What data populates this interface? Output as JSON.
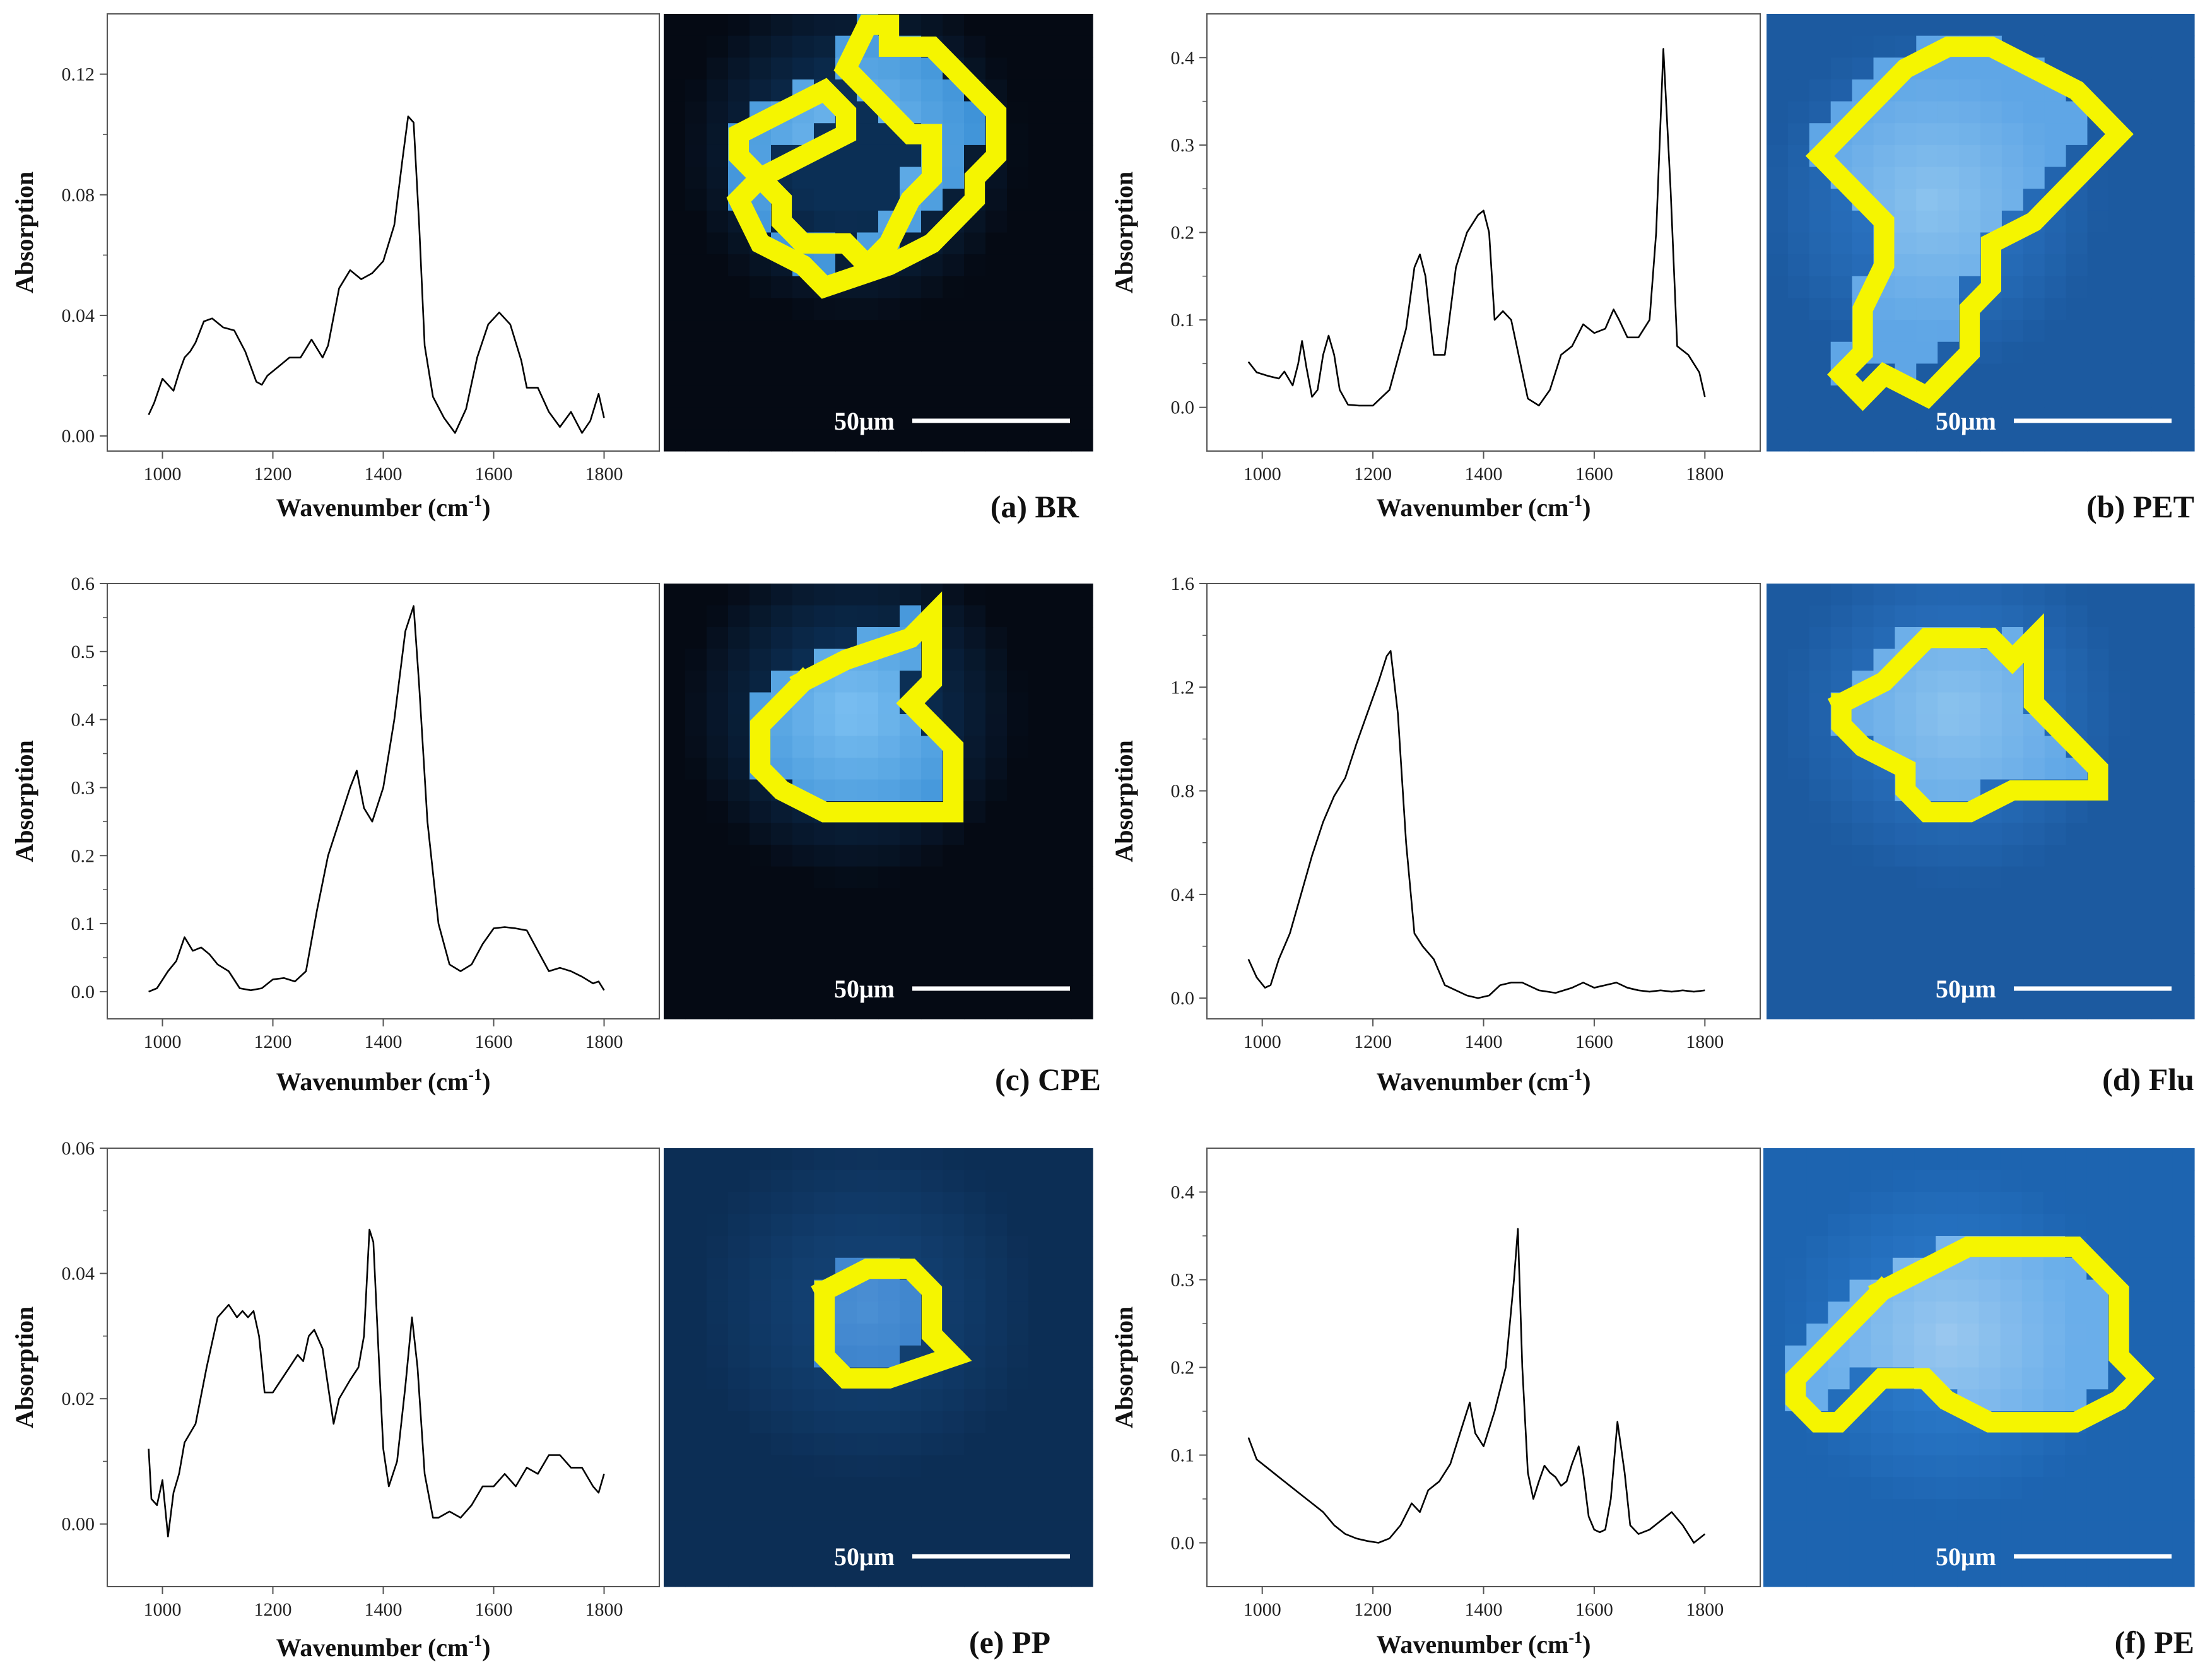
{
  "chart_data": [
    {
      "type": "line",
      "panel": "(a) BR",
      "xlabel": "Wavenumber (cm",
      "xlabel_sup": "-1",
      "xlabel_end": ")",
      "ylabel": "Absorption",
      "xlim": [
        900,
        1900
      ],
      "ylim": [
        -0.005,
        0.14
      ],
      "xticks": [
        1000,
        1200,
        1400,
        1600,
        1800
      ],
      "yticks": [
        0.0,
        0.04,
        0.08,
        0.12
      ],
      "ytick_labels": [
        "0.00",
        "0.04",
        "0.08",
        "0.12"
      ],
      "scale_bar": "50μm",
      "image_style": "dark",
      "series": [
        {
          "x": [
            975,
            985,
            1000,
            1010,
            1020,
            1030,
            1040,
            1050,
            1060,
            1075,
            1090,
            1110,
            1130,
            1150,
            1170,
            1180,
            1190,
            1210,
            1230,
            1250,
            1270,
            1290,
            1300,
            1320,
            1340,
            1360,
            1380,
            1400,
            1420,
            1435,
            1445,
            1455,
            1465,
            1475,
            1490,
            1510,
            1530,
            1550,
            1570,
            1590,
            1610,
            1630,
            1650,
            1660,
            1680,
            1700,
            1720,
            1740,
            1760,
            1775,
            1790,
            1800
          ],
          "y": [
            0.007,
            0.011,
            0.019,
            0.017,
            0.015,
            0.021,
            0.026,
            0.028,
            0.031,
            0.038,
            0.039,
            0.036,
            0.035,
            0.028,
            0.018,
            0.017,
            0.02,
            0.023,
            0.026,
            0.026,
            0.032,
            0.026,
            0.03,
            0.049,
            0.055,
            0.052,
            0.054,
            0.058,
            0.07,
            0.092,
            0.106,
            0.104,
            0.07,
            0.03,
            0.013,
            0.006,
            0.001,
            0.009,
            0.026,
            0.037,
            0.041,
            0.037,
            0.025,
            0.016,
            0.016,
            0.008,
            0.003,
            0.008,
            0.001,
            0.005,
            0.014,
            0.006
          ]
        }
      ]
    },
    {
      "type": "line",
      "panel": "(b) PET",
      "xlabel": "Wavenumber (cm",
      "xlabel_sup": "-1",
      "xlabel_end": ")",
      "ylabel": "Absorption",
      "xlim": [
        900,
        1900
      ],
      "ylim": [
        -0.05,
        0.45
      ],
      "xticks": [
        1000,
        1200,
        1400,
        1600,
        1800
      ],
      "yticks": [
        0.0,
        0.1,
        0.2,
        0.3,
        0.4
      ],
      "ytick_labels": [
        "0.0",
        "0.1",
        "0.2",
        "0.3",
        "0.4"
      ],
      "scale_bar": "50μm",
      "image_style": "blue",
      "series": [
        {
          "x": [
            975,
            990,
            1010,
            1030,
            1040,
            1055,
            1065,
            1072,
            1080,
            1090,
            1100,
            1110,
            1120,
            1130,
            1140,
            1155,
            1175,
            1200,
            1230,
            1260,
            1275,
            1285,
            1295,
            1310,
            1330,
            1350,
            1370,
            1390,
            1400,
            1410,
            1420,
            1435,
            1450,
            1460,
            1470,
            1480,
            1500,
            1520,
            1540,
            1560,
            1580,
            1600,
            1620,
            1635,
            1645,
            1660,
            1680,
            1700,
            1712,
            1725,
            1738,
            1750,
            1770,
            1790,
            1800
          ],
          "y": [
            0.052,
            0.04,
            0.036,
            0.033,
            0.041,
            0.025,
            0.05,
            0.076,
            0.045,
            0.012,
            0.02,
            0.06,
            0.082,
            0.06,
            0.02,
            0.003,
            0.002,
            0.002,
            0.02,
            0.09,
            0.16,
            0.175,
            0.15,
            0.06,
            0.06,
            0.16,
            0.2,
            0.22,
            0.225,
            0.2,
            0.1,
            0.11,
            0.1,
            0.07,
            0.04,
            0.01,
            0.002,
            0.02,
            0.06,
            0.07,
            0.095,
            0.085,
            0.09,
            0.112,
            0.1,
            0.08,
            0.08,
            0.1,
            0.2,
            0.41,
            0.25,
            0.07,
            0.06,
            0.04,
            0.012
          ]
        }
      ]
    },
    {
      "type": "line",
      "panel": "(c) CPE",
      "xlabel": "Wavenumber (cm",
      "xlabel_sup": "-1",
      "xlabel_end": ")",
      "ylabel": "Absorption",
      "xlim": [
        900,
        1900
      ],
      "ylim": [
        -0.04,
        0.6
      ],
      "xticks": [
        1000,
        1200,
        1400,
        1600,
        1800
      ],
      "yticks": [
        0.0,
        0.1,
        0.2,
        0.3,
        0.4,
        0.5,
        0.6
      ],
      "ytick_labels": [
        "0.0",
        "0.1",
        "0.2",
        "0.3",
        "0.4",
        "0.5",
        "0.6"
      ],
      "scale_bar": "50μm",
      "image_style": "dark",
      "series": [
        {
          "x": [
            975,
            990,
            1010,
            1025,
            1040,
            1055,
            1070,
            1085,
            1100,
            1120,
            1140,
            1160,
            1180,
            1200,
            1220,
            1240,
            1260,
            1280,
            1300,
            1320,
            1340,
            1352,
            1365,
            1380,
            1400,
            1420,
            1440,
            1455,
            1465,
            1480,
            1500,
            1520,
            1540,
            1560,
            1580,
            1600,
            1620,
            1640,
            1660,
            1680,
            1700,
            1720,
            1740,
            1760,
            1780,
            1790,
            1800
          ],
          "y": [
            0.0,
            0.005,
            0.03,
            0.045,
            0.08,
            0.06,
            0.065,
            0.055,
            0.04,
            0.03,
            0.005,
            0.002,
            0.005,
            0.018,
            0.02,
            0.015,
            0.03,
            0.12,
            0.2,
            0.25,
            0.3,
            0.325,
            0.27,
            0.25,
            0.3,
            0.4,
            0.53,
            0.567,
            0.45,
            0.25,
            0.1,
            0.04,
            0.03,
            0.04,
            0.07,
            0.093,
            0.095,
            0.093,
            0.09,
            0.06,
            0.03,
            0.035,
            0.03,
            0.022,
            0.012,
            0.015,
            0.002
          ]
        }
      ]
    },
    {
      "type": "line",
      "panel": "(d) Flu",
      "xlabel": "Wavenumber (cm",
      "xlabel_sup": "-1",
      "xlabel_end": ")",
      "ylabel": "Absorption",
      "xlim": [
        900,
        1900
      ],
      "ylim": [
        -0.08,
        1.6
      ],
      "xticks": [
        1000,
        1200,
        1400,
        1600,
        1800
      ],
      "yticks": [
        0.0,
        0.4,
        0.8,
        1.2,
        1.6
      ],
      "ytick_labels": [
        "0.0",
        "0.4",
        "0.8",
        "1.2",
        "1.6"
      ],
      "scale_bar": "50μm",
      "image_style": "blue",
      "series": [
        {
          "x": [
            975,
            990,
            1005,
            1015,
            1030,
            1050,
            1070,
            1090,
            1110,
            1130,
            1150,
            1170,
            1190,
            1210,
            1225,
            1232,
            1245,
            1260,
            1275,
            1290,
            1310,
            1330,
            1350,
            1370,
            1390,
            1410,
            1430,
            1450,
            1470,
            1500,
            1530,
            1560,
            1580,
            1600,
            1620,
            1640,
            1660,
            1680,
            1700,
            1720,
            1740,
            1760,
            1780,
            1800
          ],
          "y": [
            0.15,
            0.08,
            0.04,
            0.05,
            0.15,
            0.25,
            0.4,
            0.55,
            0.68,
            0.78,
            0.85,
            0.98,
            1.1,
            1.22,
            1.32,
            1.34,
            1.1,
            0.6,
            0.25,
            0.2,
            0.15,
            0.05,
            0.03,
            0.01,
            0.0,
            0.01,
            0.05,
            0.06,
            0.06,
            0.03,
            0.02,
            0.04,
            0.06,
            0.04,
            0.05,
            0.06,
            0.04,
            0.03,
            0.025,
            0.03,
            0.025,
            0.03,
            0.025,
            0.03
          ]
        }
      ]
    },
    {
      "type": "line",
      "panel": "(e) PP",
      "xlabel": "Wavenumber (cm",
      "xlabel_sup": "-1",
      "xlabel_end": ")",
      "ylabel": "Absorption",
      "xlim": [
        900,
        1900
      ],
      "ylim": [
        -0.01,
        0.06
      ],
      "xticks": [
        1000,
        1200,
        1400,
        1600,
        1800
      ],
      "yticks": [
        0.0,
        0.02,
        0.04,
        0.06
      ],
      "ytick_labels": [
        "0.00",
        "0.02",
        "0.04",
        "0.06"
      ],
      "scale_bar": "50μm",
      "image_style": "navy",
      "series": [
        {
          "x": [
            975,
            980,
            990,
            1000,
            1010,
            1020,
            1030,
            1040,
            1060,
            1080,
            1100,
            1120,
            1135,
            1145,
            1155,
            1165,
            1175,
            1185,
            1200,
            1215,
            1230,
            1245,
            1255,
            1265,
            1275,
            1290,
            1300,
            1310,
            1320,
            1340,
            1355,
            1365,
            1375,
            1382,
            1390,
            1400,
            1410,
            1425,
            1440,
            1452,
            1462,
            1475,
            1490,
            1500,
            1520,
            1540,
            1560,
            1580,
            1600,
            1620,
            1640,
            1660,
            1680,
            1700,
            1720,
            1740,
            1760,
            1780,
            1790,
            1800
          ],
          "y": [
            0.012,
            0.004,
            0.003,
            0.007,
            -0.002,
            0.005,
            0.008,
            0.013,
            0.016,
            0.025,
            0.033,
            0.035,
            0.033,
            0.034,
            0.033,
            0.034,
            0.03,
            0.021,
            0.021,
            0.023,
            0.025,
            0.027,
            0.026,
            0.03,
            0.031,
            0.028,
            0.022,
            0.016,
            0.02,
            0.023,
            0.025,
            0.03,
            0.047,
            0.045,
            0.03,
            0.012,
            0.006,
            0.01,
            0.022,
            0.033,
            0.025,
            0.008,
            0.001,
            0.001,
            0.002,
            0.001,
            0.003,
            0.006,
            0.006,
            0.008,
            0.006,
            0.009,
            0.008,
            0.011,
            0.011,
            0.009,
            0.009,
            0.006,
            0.005,
            0.008
          ]
        }
      ]
    },
    {
      "type": "line",
      "panel": "(f) PE",
      "xlabel": "Wavenumber (cm",
      "xlabel_sup": "-1",
      "xlabel_end": ")",
      "ylabel": "Absorption",
      "xlim": [
        900,
        1900
      ],
      "ylim": [
        -0.05,
        0.45
      ],
      "xticks": [
        1000,
        1200,
        1400,
        1600,
        1800
      ],
      "yticks": [
        0.0,
        0.1,
        0.2,
        0.3,
        0.4
      ],
      "ytick_labels": [
        "0.0",
        "0.1",
        "0.2",
        "0.3",
        "0.4"
      ],
      "scale_bar": "50μm",
      "image_style": "blue2",
      "series": [
        {
          "x": [
            975,
            990,
            1010,
            1030,
            1050,
            1070,
            1090,
            1110,
            1130,
            1150,
            1170,
            1190,
            1210,
            1230,
            1250,
            1270,
            1285,
            1300,
            1320,
            1340,
            1360,
            1375,
            1385,
            1400,
            1420,
            1440,
            1455,
            1462,
            1470,
            1480,
            1490,
            1500,
            1510,
            1520,
            1530,
            1540,
            1550,
            1560,
            1572,
            1580,
            1590,
            1600,
            1610,
            1620,
            1630,
            1642,
            1655,
            1665,
            1680,
            1700,
            1720,
            1740,
            1760,
            1780,
            1790,
            1800
          ],
          "y": [
            0.12,
            0.095,
            0.085,
            0.075,
            0.065,
            0.055,
            0.045,
            0.035,
            0.02,
            0.01,
            0.005,
            0.002,
            0.0,
            0.005,
            0.02,
            0.045,
            0.035,
            0.06,
            0.07,
            0.09,
            0.13,
            0.16,
            0.125,
            0.11,
            0.15,
            0.2,
            0.3,
            0.358,
            0.2,
            0.08,
            0.05,
            0.07,
            0.088,
            0.08,
            0.075,
            0.065,
            0.07,
            0.09,
            0.11,
            0.08,
            0.03,
            0.015,
            0.012,
            0.015,
            0.05,
            0.138,
            0.08,
            0.02,
            0.01,
            0.015,
            0.025,
            0.035,
            0.02,
            0.0,
            0.005,
            0.01
          ]
        }
      ]
    }
  ]
}
